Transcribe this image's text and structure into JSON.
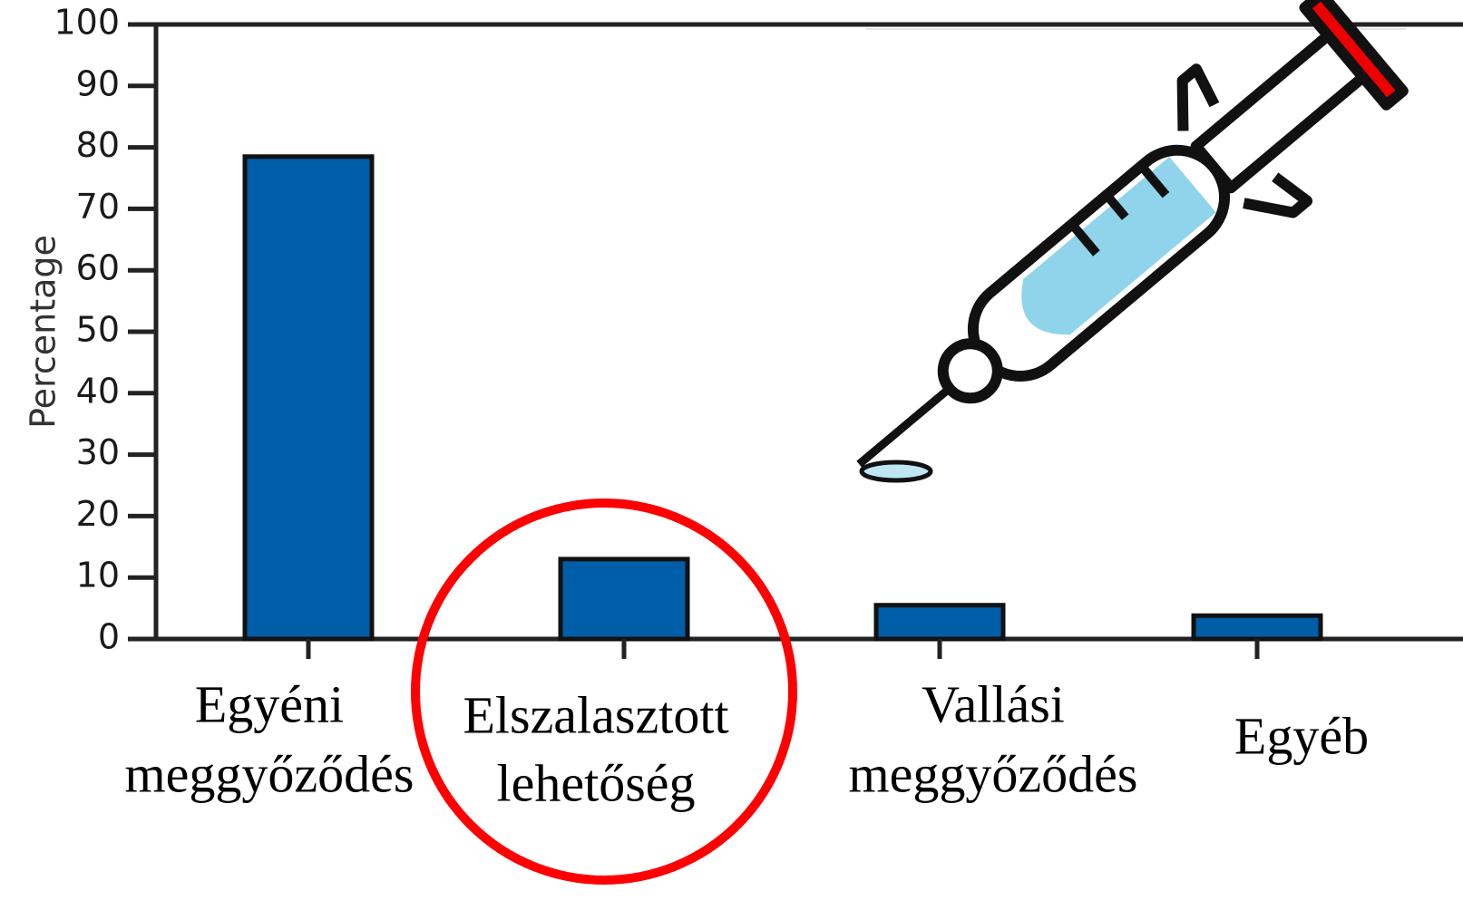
{
  "chart_data": {
    "type": "bar",
    "y_label": "Percentage",
    "categories": [
      [
        "Egyéni",
        "meggyőződés"
      ],
      [
        "Elszalasztott",
        "lehetőség"
      ],
      [
        "Vallási",
        "meggyőződés"
      ],
      [
        "Egyéb"
      ]
    ],
    "values": [
      78.5,
      13,
      5.5,
      3.8
    ],
    "color": "#005da8",
    "ylim": [
      0,
      100
    ],
    "yticks": [
      0,
      10,
      20,
      30,
      40,
      50,
      60,
      70,
      80,
      90,
      100
    ]
  }
}
